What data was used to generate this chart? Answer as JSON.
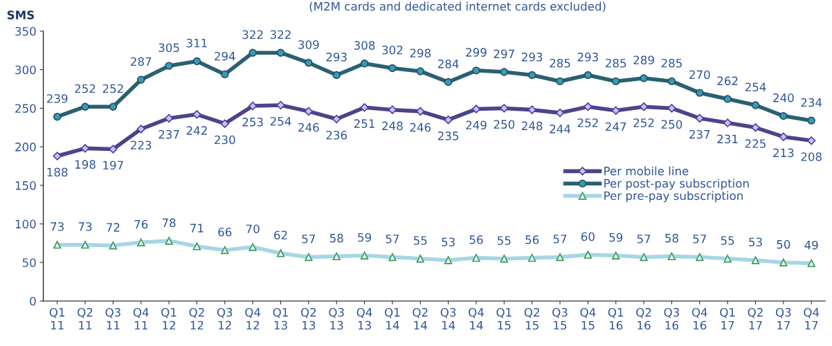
{
  "chart_data": {
    "type": "line",
    "subtitle": "(M2M cards and dedicated internet cards excluded)",
    "ylabel": "SMS",
    "categories": [
      "Q1\n11",
      "Q2\n11",
      "Q3\n11",
      "Q4\n11",
      "Q1\n12",
      "Q2\n12",
      "Q3\n12",
      "Q4\n12",
      "Q1\n13",
      "Q2\n13",
      "Q3\n13",
      "Q4\n13",
      "Q1\n14",
      "Q2\n14",
      "Q3\n14",
      "Q4\n14",
      "Q1\n15",
      "Q2\n15",
      "Q3\n15",
      "Q4\n15",
      "Q1\n16",
      "Q2\n16",
      "Q3\n16",
      "Q4\n16",
      "Q1\n17",
      "Q2\n17",
      "Q3\n17",
      "Q4\n17"
    ],
    "series": [
      {
        "name": "Per mobile line",
        "color": "#4b4488",
        "marker": "diamond",
        "values": [
          188,
          198,
          197,
          223,
          237,
          242,
          230,
          253,
          254,
          246,
          236,
          251,
          248,
          246,
          235,
          249,
          250,
          248,
          244,
          252,
          247,
          252,
          250,
          237,
          231,
          225,
          213,
          208
        ]
      },
      {
        "name": "Per post-pay subscription",
        "color": "#2b6070",
        "marker": "circle",
        "values": [
          239,
          252,
          252,
          287,
          305,
          311,
          294,
          322,
          322,
          309,
          293,
          308,
          302,
          298,
          284,
          299,
          297,
          293,
          285,
          293,
          285,
          289,
          285,
          270,
          262,
          254,
          240,
          234
        ]
      },
      {
        "name": "Per pre-pay subscription",
        "color": "#a6d6e6",
        "marker": "triangle",
        "values": [
          73,
          73,
          72,
          76,
          78,
          71,
          66,
          70,
          62,
          57,
          58,
          59,
          57,
          55,
          53,
          56,
          55,
          56,
          57,
          60,
          59,
          57,
          58,
          57,
          55,
          53,
          50,
          49
        ]
      }
    ],
    "ylim": [
      0,
      350
    ],
    "yticks": [
      0,
      50,
      100,
      150,
      200,
      250,
      300,
      350
    ],
    "data_labels": true,
    "legend": "right",
    "grid": false
  }
}
